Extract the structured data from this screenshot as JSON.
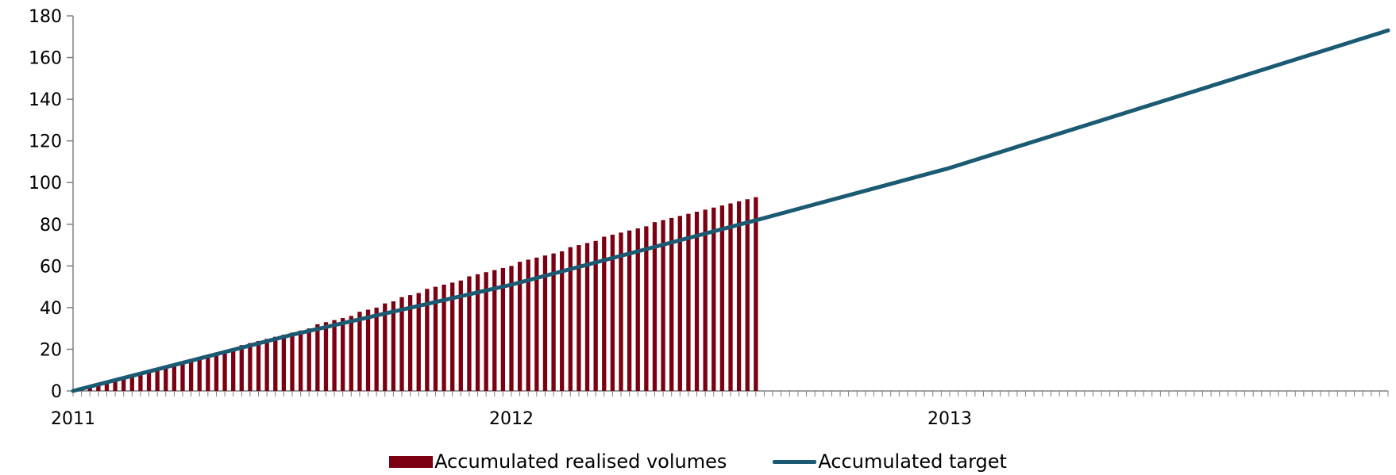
{
  "chart_data": {
    "type": "bar",
    "xlabel": "",
    "ylabel": "",
    "ylim": [
      0,
      180
    ],
    "y_ticks": [
      "0",
      "20",
      "40",
      "60",
      "80",
      "100",
      "120",
      "140",
      "160",
      "180"
    ],
    "x_ticks": [
      "2011",
      "2012",
      "2013"
    ],
    "x_unit": "week",
    "x_range_weeks": [
      0,
      156
    ],
    "series": [
      {
        "name": "Accumulated realised volumes",
        "type": "bar",
        "color": "#7b0011",
        "x_weeks": [
          1,
          2,
          3,
          4,
          5,
          6,
          7,
          8,
          9,
          10,
          11,
          12,
          13,
          14,
          15,
          16,
          17,
          18,
          19,
          20,
          21,
          22,
          23,
          24,
          25,
          26,
          27,
          28,
          29,
          30,
          31,
          32,
          33,
          34,
          35,
          36,
          37,
          38,
          39,
          40,
          41,
          42,
          43,
          44,
          45,
          46,
          47,
          48,
          49,
          50,
          51,
          52,
          53,
          54,
          55,
          56,
          57,
          58,
          59,
          60,
          61,
          62,
          63,
          64,
          65,
          66,
          67,
          68,
          69,
          70,
          71,
          72,
          73,
          74,
          75,
          76,
          77,
          78,
          79,
          80,
          81
        ],
        "values": [
          1,
          2,
          3,
          4,
          5,
          6,
          7,
          8,
          9,
          10,
          11,
          12,
          14,
          15,
          16,
          17,
          18,
          19,
          20,
          22,
          23,
          24,
          25,
          26,
          27,
          28,
          29,
          30,
          32,
          33,
          34,
          35,
          36,
          38,
          39,
          40,
          42,
          43,
          45,
          46,
          47,
          49,
          50,
          51,
          52,
          53,
          55,
          56,
          57,
          58,
          59,
          60,
          62,
          63,
          64,
          65,
          66,
          67,
          69,
          70,
          71,
          72,
          74,
          75,
          76,
          77,
          78,
          79,
          81,
          82,
          83,
          84,
          85,
          86,
          87,
          88,
          89,
          90,
          91,
          92,
          93
        ]
      },
      {
        "name": "Accumulated target",
        "type": "line",
        "color": "#1b5a73",
        "x_weeks": [
          0,
          26,
          52,
          82,
          104,
          130,
          156
        ],
        "values": [
          0,
          27,
          51,
          83,
          107,
          140,
          173
        ]
      }
    ],
    "legend_position": "bottom-center",
    "grid": false
  }
}
